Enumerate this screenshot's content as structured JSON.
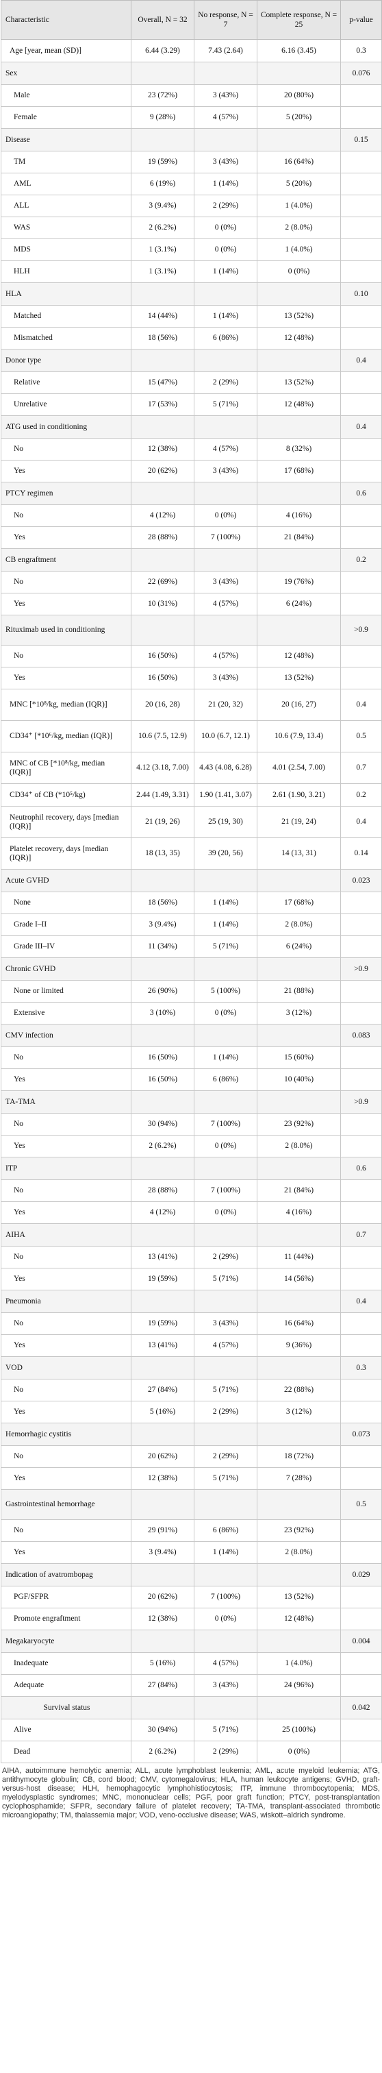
{
  "header": {
    "characteristic": "Characteristic",
    "overall": "Overall, N = 32",
    "no_response": "No response, N = 7",
    "complete_response": "Complete response, N = 25",
    "p_value": "p-value"
  },
  "rows": [
    {
      "type": "stat",
      "label": "Age [year, mean (SD)]",
      "o": "6.44 (3.29)",
      "n": "7.43 (2.64)",
      "c": "6.16 (3.45)",
      "p": "0.3"
    },
    {
      "type": "group",
      "label": "Sex",
      "o": "",
      "n": "",
      "c": "",
      "p": "0.076"
    },
    {
      "type": "sub",
      "label": "Male",
      "o": "23 (72%)",
      "n": "3 (43%)",
      "c": "20 (80%)",
      "p": ""
    },
    {
      "type": "sub",
      "label": "Female",
      "o": "9 (28%)",
      "n": "4 (57%)",
      "c": "5 (20%)",
      "p": ""
    },
    {
      "type": "group",
      "label": "Disease",
      "o": "",
      "n": "",
      "c": "",
      "p": "0.15"
    },
    {
      "type": "sub",
      "label": "TM",
      "o": "19 (59%)",
      "n": "3 (43%)",
      "c": "16 (64%)",
      "p": ""
    },
    {
      "type": "sub",
      "label": "AML",
      "o": "6 (19%)",
      "n": "1 (14%)",
      "c": "5 (20%)",
      "p": ""
    },
    {
      "type": "sub",
      "label": "ALL",
      "o": "3 (9.4%)",
      "n": "2 (29%)",
      "c": "1 (4.0%)",
      "p": ""
    },
    {
      "type": "sub",
      "label": "WAS",
      "o": "2 (6.2%)",
      "n": "0 (0%)",
      "c": "2 (8.0%)",
      "p": ""
    },
    {
      "type": "sub",
      "label": "MDS",
      "o": "1 (3.1%)",
      "n": "0 (0%)",
      "c": "1 (4.0%)",
      "p": ""
    },
    {
      "type": "sub",
      "label": "HLH",
      "o": "1 (3.1%)",
      "n": "1 (14%)",
      "c": "0 (0%)",
      "p": ""
    },
    {
      "type": "group",
      "label": "HLA",
      "o": "",
      "n": "",
      "c": "",
      "p": "0.10"
    },
    {
      "type": "sub",
      "label": "Matched",
      "o": "14 (44%)",
      "n": "1 (14%)",
      "c": "13 (52%)",
      "p": ""
    },
    {
      "type": "sub",
      "label": "Mismatched",
      "o": "18 (56%)",
      "n": "6 (86%)",
      "c": "12 (48%)",
      "p": ""
    },
    {
      "type": "group",
      "label": "Donor type",
      "o": "",
      "n": "",
      "c": "",
      "p": "0.4"
    },
    {
      "type": "sub",
      "label": "Relative",
      "o": "15 (47%)",
      "n": "2 (29%)",
      "c": "13 (52%)",
      "p": ""
    },
    {
      "type": "sub",
      "label": "Unrelative",
      "o": "17 (53%)",
      "n": "5 (71%)",
      "c": "12 (48%)",
      "p": ""
    },
    {
      "type": "group",
      "label": "ATG used in conditioning",
      "o": "",
      "n": "",
      "c": "",
      "p": "0.4"
    },
    {
      "type": "sub",
      "label": "No",
      "o": "12 (38%)",
      "n": "4 (57%)",
      "c": "8 (32%)",
      "p": ""
    },
    {
      "type": "sub",
      "label": "Yes",
      "o": "20 (62%)",
      "n": "3 (43%)",
      "c": "17 (68%)",
      "p": ""
    },
    {
      "type": "group",
      "label": "PTCY regimen",
      "o": "",
      "n": "",
      "c": "",
      "p": "0.6"
    },
    {
      "type": "sub",
      "label": "No",
      "o": "4 (12%)",
      "n": "0 (0%)",
      "c": "4 (16%)",
      "p": ""
    },
    {
      "type": "sub",
      "label": "Yes",
      "o": "28 (88%)",
      "n": "7 (100%)",
      "c": "21 (84%)",
      "p": ""
    },
    {
      "type": "group",
      "label": "CB engraftment",
      "o": "",
      "n": "",
      "c": "",
      "p": "0.2"
    },
    {
      "type": "sub",
      "label": "No",
      "o": "22 (69%)",
      "n": "3 (43%)",
      "c": "19 (76%)",
      "p": ""
    },
    {
      "type": "sub",
      "label": "Yes",
      "o": "10 (31%)",
      "n": "4 (57%)",
      "c": "6 (24%)",
      "p": ""
    },
    {
      "type": "group",
      "label": "Rituximab used in conditioning",
      "o": "",
      "n": "",
      "c": "",
      "p": ">0.9"
    },
    {
      "type": "sub",
      "label": "No",
      "o": "16 (50%)",
      "n": "4 (57%)",
      "c": "12 (48%)",
      "p": ""
    },
    {
      "type": "sub",
      "label": "Yes",
      "o": "16 (50%)",
      "n": "3 (43%)",
      "c": "13 (52%)",
      "p": ""
    },
    {
      "type": "stat",
      "label": "MNC [*10⁸/kg, median (IQR)]",
      "o": "20 (16, 28)",
      "n": "21 (20, 32)",
      "c": "20 (16, 27)",
      "p": "0.4"
    },
    {
      "type": "stat",
      "label": "CD34⁺ [*10⁶/kg, median (IQR)]",
      "o": "10.6 (7.5, 12.9)",
      "n": "10.0 (6.7, 12.1)",
      "c": "10.6 (7.9, 13.4)",
      "p": "0.5"
    },
    {
      "type": "stat",
      "label": "MNC of CB [*10⁸/kg, median (IQR)]",
      "o": "4.12 (3.18, 7.00)",
      "n": "4.43 (4.08, 6.28)",
      "c": "4.01 (2.54, 7.00)",
      "p": "0.7"
    },
    {
      "type": "stat",
      "label": "CD34⁺ of CB (*10⁵/kg)",
      "o": "2.44 (1.49, 3.31)",
      "n": "1.90 (1.41, 3.07)",
      "c": "2.61 (1.90, 3.21)",
      "p": "0.2"
    },
    {
      "type": "stat",
      "label": "Neutrophil recovery, days [median (IQR)]",
      "o": "21 (19, 26)",
      "n": "25 (19, 30)",
      "c": "21 (19, 24)",
      "p": "0.4"
    },
    {
      "type": "stat",
      "label": "Platelet recovery, days [median (IQR)]",
      "o": "18 (13, 35)",
      "n": "39 (20, 56)",
      "c": "14 (13, 31)",
      "p": "0.14"
    },
    {
      "type": "group",
      "label": "Acute GVHD",
      "o": "",
      "n": "",
      "c": "",
      "p": "0.023"
    },
    {
      "type": "sub",
      "label": "None",
      "o": "18 (56%)",
      "n": "1 (14%)",
      "c": "17 (68%)",
      "p": ""
    },
    {
      "type": "sub",
      "label": "Grade I–II",
      "o": "3 (9.4%)",
      "n": "1 (14%)",
      "c": "2 (8.0%)",
      "p": ""
    },
    {
      "type": "sub",
      "label": "Grade III–IV",
      "o": "11 (34%)",
      "n": "5 (71%)",
      "c": "6 (24%)",
      "p": ""
    },
    {
      "type": "group",
      "label": "Chronic GVHD",
      "o": "",
      "n": "",
      "c": "",
      "p": ">0.9"
    },
    {
      "type": "sub",
      "label": "None or limited",
      "o": "26 (90%)",
      "n": "5 (100%)",
      "c": "21 (88%)",
      "p": ""
    },
    {
      "type": "sub",
      "label": "Extensive",
      "o": "3 (10%)",
      "n": "0 (0%)",
      "c": "3 (12%)",
      "p": ""
    },
    {
      "type": "group",
      "label": "CMV infection",
      "o": "",
      "n": "",
      "c": "",
      "p": "0.083"
    },
    {
      "type": "sub",
      "label": "No",
      "o": "16 (50%)",
      "n": "1 (14%)",
      "c": "15 (60%)",
      "p": ""
    },
    {
      "type": "sub",
      "label": "Yes",
      "o": "16 (50%)",
      "n": "6 (86%)",
      "c": "10 (40%)",
      "p": ""
    },
    {
      "type": "group",
      "label": "TA-TMA",
      "o": "",
      "n": "",
      "c": "",
      "p": ">0.9"
    },
    {
      "type": "sub",
      "label": "No",
      "o": "30 (94%)",
      "n": "7 (100%)",
      "c": "23 (92%)",
      "p": ""
    },
    {
      "type": "sub",
      "label": "Yes",
      "o": "2 (6.2%)",
      "n": "0 (0%)",
      "c": "2 (8.0%)",
      "p": ""
    },
    {
      "type": "group",
      "label": "ITP",
      "o": "",
      "n": "",
      "c": "",
      "p": "0.6"
    },
    {
      "type": "sub",
      "label": "No",
      "o": "28 (88%)",
      "n": "7 (100%)",
      "c": "21 (84%)",
      "p": ""
    },
    {
      "type": "sub",
      "label": "Yes",
      "o": "4 (12%)",
      "n": "0 (0%)",
      "c": "4 (16%)",
      "p": ""
    },
    {
      "type": "group",
      "label": "AIHA",
      "o": "",
      "n": "",
      "c": "",
      "p": "0.7"
    },
    {
      "type": "sub",
      "label": "No",
      "o": "13 (41%)",
      "n": "2 (29%)",
      "c": "11 (44%)",
      "p": ""
    },
    {
      "type": "sub",
      "label": "Yes",
      "o": "19 (59%)",
      "n": "5 (71%)",
      "c": "14 (56%)",
      "p": ""
    },
    {
      "type": "group",
      "label": "Pneumonia",
      "o": "",
      "n": "",
      "c": "",
      "p": "0.4"
    },
    {
      "type": "sub",
      "label": "No",
      "o": "19 (59%)",
      "n": "3 (43%)",
      "c": "16 (64%)",
      "p": ""
    },
    {
      "type": "sub",
      "label": "Yes",
      "o": "13 (41%)",
      "n": "4 (57%)",
      "c": "9 (36%)",
      "p": ""
    },
    {
      "type": "group",
      "label": "VOD",
      "o": "",
      "n": "",
      "c": "",
      "p": "0.3"
    },
    {
      "type": "sub",
      "label": "No",
      "o": "27 (84%)",
      "n": "5 (71%)",
      "c": "22 (88%)",
      "p": ""
    },
    {
      "type": "sub",
      "label": "Yes",
      "o": "5 (16%)",
      "n": "2 (29%)",
      "c": "3 (12%)",
      "p": ""
    },
    {
      "type": "group",
      "label": "Hemorrhagic cystitis",
      "o": "",
      "n": "",
      "c": "",
      "p": "0.073"
    },
    {
      "type": "sub",
      "label": "No",
      "o": "20 (62%)",
      "n": "2 (29%)",
      "c": "18 (72%)",
      "p": ""
    },
    {
      "type": "sub",
      "label": "Yes",
      "o": "12 (38%)",
      "n": "5 (71%)",
      "c": "7 (28%)",
      "p": ""
    },
    {
      "type": "group",
      "label": "Gastrointestinal hemorrhage",
      "o": "",
      "n": "",
      "c": "",
      "p": "0.5"
    },
    {
      "type": "sub",
      "label": "No",
      "o": "29 (91%)",
      "n": "6 (86%)",
      "c": "23 (92%)",
      "p": ""
    },
    {
      "type": "sub",
      "label": "Yes",
      "o": "3 (9.4%)",
      "n": "1 (14%)",
      "c": "2 (8.0%)",
      "p": ""
    },
    {
      "type": "group",
      "label": "Indication of avatrombopag",
      "o": "",
      "n": "",
      "c": "",
      "p": "0.029"
    },
    {
      "type": "sub",
      "label": "PGF/SFPR",
      "o": "20 (62%)",
      "n": "7 (100%)",
      "c": "13 (52%)",
      "p": ""
    },
    {
      "type": "sub",
      "label": "Promote engraftment",
      "o": "12 (38%)",
      "n": "0 (0%)",
      "c": "12 (48%)",
      "p": ""
    },
    {
      "type": "group",
      "label": "Megakaryocyte",
      "o": "",
      "n": "",
      "c": "",
      "p": "0.004"
    },
    {
      "type": "sub",
      "label": "Inadequate",
      "o": "5 (16%)",
      "n": "4 (57%)",
      "c": "1 (4.0%)",
      "p": ""
    },
    {
      "type": "sub",
      "label": "Adequate",
      "o": "27 (84%)",
      "n": "3 (43%)",
      "c": "24 (96%)",
      "p": ""
    },
    {
      "type": "group",
      "label": "Survival status",
      "o": "",
      "n": "",
      "c": "",
      "p": "0.042",
      "centered": true
    },
    {
      "type": "sub",
      "label": "Alive",
      "o": "30 (94%)",
      "n": "5 (71%)",
      "c": "25 (100%)",
      "p": ""
    },
    {
      "type": "sub",
      "label": "Dead",
      "o": "2 (6.2%)",
      "n": "2 (29%)",
      "c": "0 (0%)",
      "p": ""
    }
  ],
  "footnote": "AIHA, autoimmune hemolytic anemia; ALL, acute lymphoblast leukemia; AML, acute myeloid leukemia; ATG, antithymocyte globulin; CB, cord blood; CMV, cytomegalovirus; HLA, human leukocyte antigens; GVHD, graft-versus-host disease; HLH, hemophagocytic lymphohistiocytosis; ITP, immune thrombocytopenia; MDS, myelodysplastic syndromes; MNC, mononuclear cells; PGF, poor graft function; PTCY, post-transplantation cyclophosphamide; SFPR, secondary failure of platelet recovery; TA-TMA, transplant-associated thrombotic microangiopathy; TM, thalassemia major; VOD, veno-occlusive disease; WAS, wiskott–aldrich syndrome."
}
